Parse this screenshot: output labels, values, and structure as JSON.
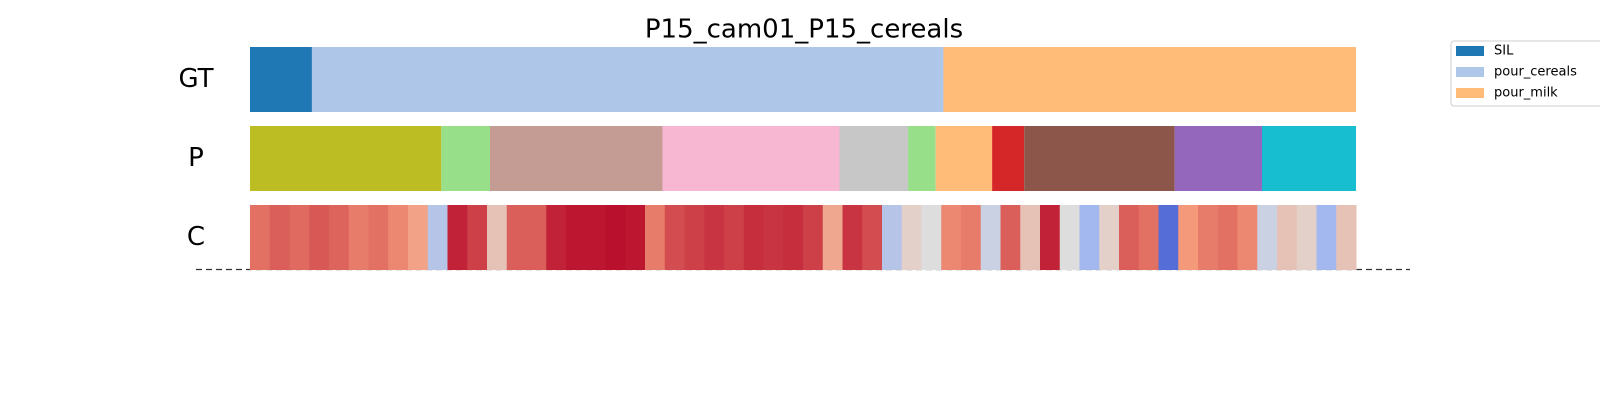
{
  "chart_data": {
    "type": "segmentation",
    "title": "P15_cam01_P15_cereals",
    "xlim": [
      0,
      100
    ],
    "rows": [
      {
        "label": "GT",
        "segments": [
          {
            "start": 0,
            "end": 5.6,
            "color": "#1f77b4"
          },
          {
            "start": 5.6,
            "end": 62.7,
            "color": "#aec7e8"
          },
          {
            "start": 62.7,
            "end": 100,
            "color": "#ffbb78"
          }
        ]
      },
      {
        "label": "P",
        "segments": [
          {
            "start": 0,
            "end": 17.3,
            "color": "#bcbd22"
          },
          {
            "start": 17.3,
            "end": 21.7,
            "color": "#98df8a"
          },
          {
            "start": 21.7,
            "end": 37.3,
            "color": "#c49c94"
          },
          {
            "start": 37.3,
            "end": 53.3,
            "color": "#f7b6d2"
          },
          {
            "start": 53.3,
            "end": 59.5,
            "color": "#c7c7c7"
          },
          {
            "start": 59.5,
            "end": 62.0,
            "color": "#98df8a"
          },
          {
            "start": 62.0,
            "end": 67.1,
            "color": "#ffbb78"
          },
          {
            "start": 67.1,
            "end": 70.0,
            "color": "#d62728"
          },
          {
            "start": 70.0,
            "end": 83.6,
            "color": "#8c564b"
          },
          {
            "start": 83.6,
            "end": 91.5,
            "color": "#9467bd"
          },
          {
            "start": 91.5,
            "end": 100,
            "color": "#17becf"
          }
        ]
      }
    ],
    "confidence": {
      "label": "C",
      "colormap": [
        "#3b4cc0",
        "#7b9ff9",
        "#dddddd",
        "#f49a7b",
        "#b40426"
      ],
      "values": [
        0.82,
        0.85,
        0.83,
        0.86,
        0.84,
        0.8,
        0.82,
        0.78,
        0.72,
        0.4,
        0.95,
        0.9,
        0.6,
        0.85,
        0.85,
        0.95,
        0.97,
        0.97,
        0.98,
        0.97,
        0.8,
        0.88,
        0.9,
        0.92,
        0.9,
        0.93,
        0.92,
        0.93,
        0.9,
        0.7,
        0.92,
        0.88,
        0.4,
        0.55,
        0.5,
        0.78,
        0.8,
        0.45,
        0.85,
        0.6,
        0.95,
        0.5,
        0.35,
        0.55,
        0.85,
        0.82,
        0.1,
        0.75,
        0.8,
        0.82,
        0.78,
        0.45,
        0.6,
        0.55,
        0.35,
        0.6
      ]
    },
    "legend": {
      "position": "upper right",
      "entries": [
        {
          "name": "SIL",
          "color": "#1f77b4"
        },
        {
          "name": "pour_cereals",
          "color": "#aec7e8"
        },
        {
          "name": "pour_milk",
          "color": "#ffbb78"
        }
      ]
    }
  }
}
